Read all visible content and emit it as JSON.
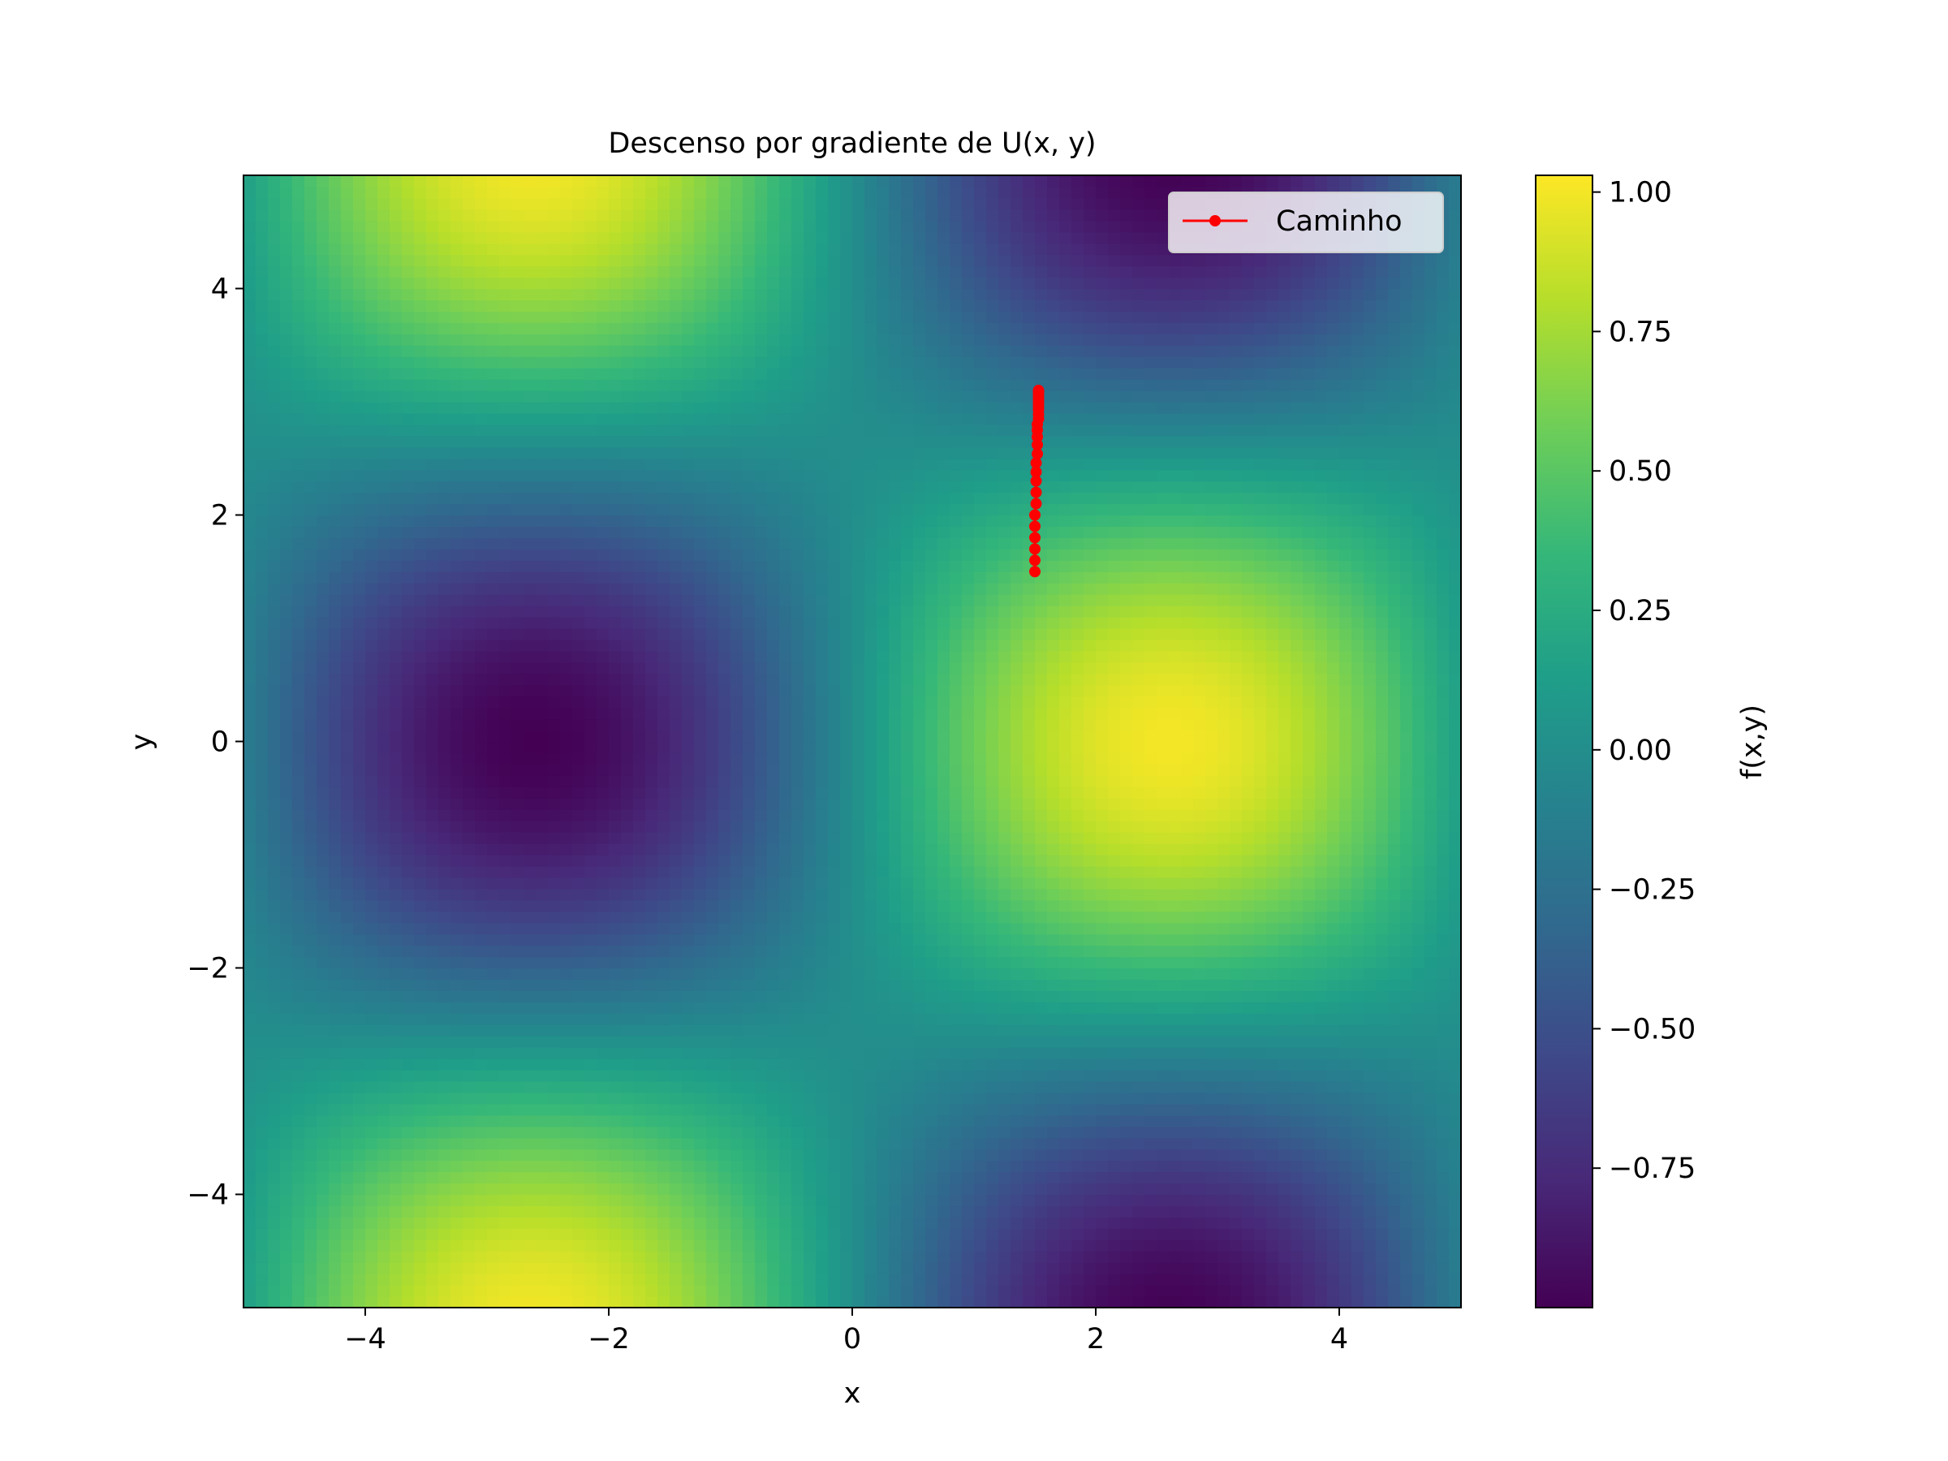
{
  "chart_data": {
    "type": "heatmap",
    "title": "Descenso por gradiente de U(x, y)",
    "xlabel": "x",
    "ylabel": "y",
    "xlim": [
      -5,
      5
    ],
    "ylim": [
      -5,
      5
    ],
    "grid": false,
    "colormap": "viridis",
    "colormap_stops": [
      "#440154",
      "#482878",
      "#3e4989",
      "#31688e",
      "#26828e",
      "#1f9e89",
      "#35b779",
      "#6ece58",
      "#b5de2b",
      "#fde725"
    ],
    "x_ticks": [
      {
        "value": -4,
        "label": "−4"
      },
      {
        "value": -2,
        "label": "−2"
      },
      {
        "value": 0,
        "label": "0"
      },
      {
        "value": 2,
        "label": "2"
      },
      {
        "value": 4,
        "label": "4"
      }
    ],
    "y_ticks": [
      {
        "value": -4,
        "label": "−4"
      },
      {
        "value": -2,
        "label": "−2"
      },
      {
        "value": 0,
        "label": "0"
      },
      {
        "value": 2,
        "label": "2"
      },
      {
        "value": 4,
        "label": "4"
      }
    ],
    "field": {
      "description_formula": "sin(0.6*x) * cos(0.6*y)",
      "approx_range": [
        -1.0,
        1.0
      ],
      "maxima": [
        [
          2.6,
          0
        ],
        [
          -2.6,
          5
        ],
        [
          -2.6,
          -5
        ]
      ],
      "minima": [
        [
          -2.6,
          0
        ],
        [
          2.6,
          5
        ],
        [
          2.6,
          -5
        ]
      ]
    },
    "colorbar": {
      "label": "f(x,y)",
      "vmin": -1.0,
      "vmax": 1.03,
      "ticks": [
        {
          "value": 1.0,
          "label": "1.00"
        },
        {
          "value": 0.75,
          "label": "0.75"
        },
        {
          "value": 0.5,
          "label": "0.50"
        },
        {
          "value": 0.25,
          "label": "0.25"
        },
        {
          "value": 0.0,
          "label": "0.00"
        },
        {
          "value": -0.25,
          "label": "−0.25"
        },
        {
          "value": -0.5,
          "label": "−0.50"
        },
        {
          "value": -0.75,
          "label": "−0.75"
        }
      ]
    },
    "series": [
      {
        "name": "Caminho",
        "type": "line",
        "color": "#ff0000",
        "marker": "circle",
        "x": [
          1.5,
          1.5,
          1.5,
          1.5,
          1.5,
          1.5,
          1.51,
          1.51,
          1.51,
          1.51,
          1.51,
          1.52,
          1.52,
          1.52,
          1.52,
          1.52,
          1.53,
          1.53,
          1.53,
          1.53,
          1.53,
          1.53,
          1.53,
          1.53,
          1.53
        ],
        "y": [
          1.5,
          1.6,
          1.7,
          1.8,
          1.9,
          2.0,
          2.1,
          2.2,
          2.3,
          2.38,
          2.46,
          2.54,
          2.62,
          2.69,
          2.75,
          2.8,
          2.85,
          2.89,
          2.93,
          2.96,
          2.99,
          3.02,
          3.05,
          3.08,
          3.1
        ]
      }
    ],
    "legend": {
      "position": "upper-right"
    }
  }
}
